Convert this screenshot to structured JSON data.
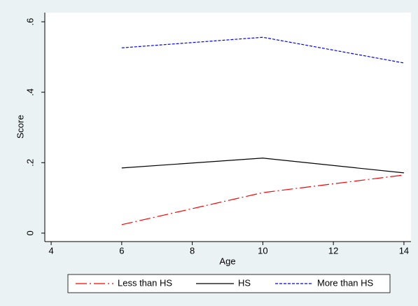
{
  "chart_data": {
    "type": "line",
    "x_label": "Age",
    "y_label": "Score",
    "x": [
      6,
      10,
      14
    ],
    "series": [
      {
        "name": "Less than HS",
        "color": "#ff0000",
        "style": "dashdot",
        "values": [
          0.024,
          0.115,
          0.165
        ]
      },
      {
        "name": "HS",
        "color": "#000000",
        "style": "solid",
        "values": [
          0.185,
          0.213,
          0.171
        ]
      },
      {
        "name": "More than HS",
        "color": "#0000ff",
        "style": "dash",
        "values": [
          0.526,
          0.556,
          0.483
        ]
      }
    ],
    "xlim": [
      3.82,
      14.2
    ],
    "xticks": [
      4,
      6,
      8,
      10,
      12,
      14
    ],
    "ylim": [
      -0.024,
      0.626
    ],
    "yticks": [
      0,
      {
        "value": 0.2,
        "label": ".2"
      },
      {
        "value": 0.4,
        "label": ".4"
      },
      {
        "value": 0.6,
        "label": ".6"
      }
    ],
    "grid": false,
    "legend": "bottom"
  }
}
